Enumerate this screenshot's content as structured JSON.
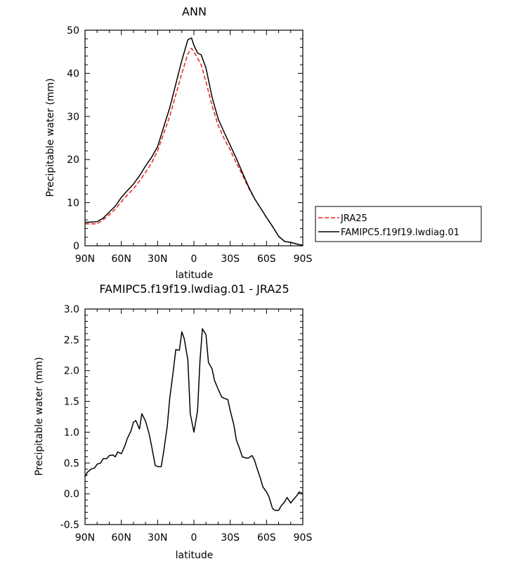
{
  "chart_data": [
    {
      "type": "line",
      "title": "ANN",
      "xlabel": "latitude",
      "ylabel": "Precipitable water (mm)",
      "xlim": [
        90,
        -90
      ],
      "ylim": [
        0,
        50
      ],
      "xticks": [
        90,
        60,
        30,
        0,
        -30,
        -60,
        -90
      ],
      "xtick_labels": [
        "90N",
        "60N",
        "30N",
        "0",
        "30S",
        "60S",
        "90S"
      ],
      "yticks": [
        0,
        10,
        20,
        30,
        40,
        50
      ],
      "ytick_labels": [
        "0",
        "10",
        "20",
        "30",
        "40",
        "50"
      ],
      "legend": {
        "position": "right"
      },
      "series": [
        {
          "name": "JRA25",
          "color": "#e8201a",
          "dash": "dashed",
          "points": [
            [
              90,
              5.1
            ],
            [
              85,
              5.1
            ],
            [
              80,
              5.1
            ],
            [
              75,
              6.0
            ],
            [
              70,
              7.2
            ],
            [
              65,
              8.5
            ],
            [
              60,
              10.2
            ],
            [
              55,
              11.8
            ],
            [
              50,
              13.2
            ],
            [
              45,
              15.0
            ],
            [
              40,
              17.0
            ],
            [
              35,
              19.2
            ],
            [
              30,
              22.0
            ],
            [
              25,
              26.0
            ],
            [
              20,
              30.0
            ],
            [
              15,
              35.0
            ],
            [
              10,
              40.0
            ],
            [
              5,
              44.5
            ],
            [
              2,
              45.8
            ],
            [
              0,
              45.0
            ],
            [
              -3,
              43.5
            ],
            [
              -6,
              42.0
            ],
            [
              -10,
              38.0
            ],
            [
              -15,
              32.5
            ],
            [
              -20,
              28.0
            ],
            [
              -25,
              24.8
            ],
            [
              -30,
              22.2
            ],
            [
              -35,
              19.2
            ],
            [
              -40,
              16.5
            ],
            [
              -45,
              13.5
            ],
            [
              -50,
              11.0
            ],
            [
              -55,
              8.8
            ],
            [
              -60,
              6.5
            ],
            [
              -65,
              4.5
            ],
            [
              -70,
              2.2
            ],
            [
              -75,
              1.0
            ],
            [
              -80,
              0.8
            ],
            [
              -85,
              0.4
            ],
            [
              -90,
              0.1
            ]
          ]
        },
        {
          "name": "FAMIPC5.f19f19.lwdiag.01",
          "color": "#000000",
          "dash": "solid",
          "points": [
            [
              90,
              5.4
            ],
            [
              85,
              5.5
            ],
            [
              80,
              5.6
            ],
            [
              75,
              6.4
            ],
            [
              70,
              7.8
            ],
            [
              65,
              9.2
            ],
            [
              60,
              11.2
            ],
            [
              55,
              12.8
            ],
            [
              50,
              14.3
            ],
            [
              45,
              16.2
            ],
            [
              40,
              18.5
            ],
            [
              35,
              20.5
            ],
            [
              30,
              23.0
            ],
            [
              25,
              27.5
            ],
            [
              20,
              32.0
            ],
            [
              15,
              37.5
            ],
            [
              10,
              43.0
            ],
            [
              5,
              47.8
            ],
            [
              2,
              48.2
            ],
            [
              0,
              46.5
            ],
            [
              -3,
              44.7
            ],
            [
              -6,
              44.3
            ],
            [
              -10,
              41.2
            ],
            [
              -15,
              34.5
            ],
            [
              -20,
              29.5
            ],
            [
              -25,
              26.3
            ],
            [
              -30,
              23.3
            ],
            [
              -35,
              20.3
            ],
            [
              -40,
              17.0
            ],
            [
              -45,
              13.8
            ],
            [
              -50,
              11.0
            ],
            [
              -55,
              8.8
            ],
            [
              -60,
              6.6
            ],
            [
              -65,
              4.5
            ],
            [
              -70,
              2.2
            ],
            [
              -75,
              1.0
            ],
            [
              -80,
              0.8
            ],
            [
              -85,
              0.4
            ],
            [
              -90,
              0.1
            ]
          ]
        }
      ]
    },
    {
      "type": "line",
      "title": "FAMIPC5.f19f19.lwdiag.01 - JRA25",
      "xlabel": "latitude",
      "ylabel": "Precipitable water (mm)",
      "xlim": [
        90,
        -90
      ],
      "ylim": [
        -0.5,
        3.0
      ],
      "xticks": [
        90,
        60,
        30,
        0,
        -30,
        -60,
        -90
      ],
      "xtick_labels": [
        "90N",
        "60N",
        "30N",
        "0",
        "30S",
        "60S",
        "90S"
      ],
      "yticks": [
        -0.5,
        0.0,
        0.5,
        1.0,
        1.5,
        2.0,
        2.5,
        3.0
      ],
      "ytick_labels": [
        "-0.5",
        "0.0",
        "0.5",
        "1.0",
        "1.5",
        "2.0",
        "2.5",
        "3.0"
      ],
      "series": [
        {
          "color": "#000000",
          "dash": "solid",
          "points": [
            [
              90,
              0.28
            ],
            [
              88,
              0.35
            ],
            [
              85,
              0.4
            ],
            [
              82,
              0.42
            ],
            [
              80,
              0.48
            ],
            [
              77,
              0.5
            ],
            [
              75,
              0.57
            ],
            [
              72,
              0.57
            ],
            [
              70,
              0.62
            ],
            [
              67,
              0.63
            ],
            [
              65,
              0.6
            ],
            [
              63,
              0.68
            ],
            [
              60,
              0.65
            ],
            [
              57,
              0.78
            ],
            [
              55,
              0.9
            ],
            [
              52,
              1.02
            ],
            [
              50,
              1.16
            ],
            [
              48,
              1.19
            ],
            [
              45,
              1.05
            ],
            [
              43,
              1.3
            ],
            [
              40,
              1.18
            ],
            [
              37,
              0.97
            ],
            [
              35,
              0.78
            ],
            [
              32,
              0.46
            ],
            [
              30,
              0.44
            ],
            [
              27,
              0.44
            ],
            [
              25,
              0.68
            ],
            [
              22,
              1.1
            ],
            [
              20,
              1.55
            ],
            [
              17,
              2.0
            ],
            [
              15,
              2.34
            ],
            [
              12,
              2.33
            ],
            [
              10,
              2.63
            ],
            [
              8,
              2.52
            ],
            [
              5,
              2.17
            ],
            [
              3,
              1.3
            ],
            [
              0,
              1.0
            ],
            [
              -3,
              1.35
            ],
            [
              -5,
              2.15
            ],
            [
              -7,
              2.68
            ],
            [
              -10,
              2.58
            ],
            [
              -12,
              2.13
            ],
            [
              -15,
              2.03
            ],
            [
              -17,
              1.84
            ],
            [
              -20,
              1.7
            ],
            [
              -23,
              1.57
            ],
            [
              -25,
              1.55
            ],
            [
              -28,
              1.53
            ],
            [
              -30,
              1.35
            ],
            [
              -33,
              1.12
            ],
            [
              -35,
              0.88
            ],
            [
              -38,
              0.72
            ],
            [
              -40,
              0.6
            ],
            [
              -43,
              0.58
            ],
            [
              -45,
              0.58
            ],
            [
              -48,
              0.62
            ],
            [
              -50,
              0.55
            ],
            [
              -52,
              0.42
            ],
            [
              -55,
              0.25
            ],
            [
              -57,
              0.11
            ],
            [
              -60,
              0.03
            ],
            [
              -62,
              -0.05
            ],
            [
              -65,
              -0.24
            ],
            [
              -67,
              -0.27
            ],
            [
              -70,
              -0.27
            ],
            [
              -72,
              -0.2
            ],
            [
              -75,
              -0.13
            ],
            [
              -77,
              -0.06
            ],
            [
              -80,
              -0.15
            ],
            [
              -82,
              -0.1
            ],
            [
              -85,
              -0.03
            ],
            [
              -87,
              0.03
            ],
            [
              -90,
              0.0
            ]
          ]
        }
      ]
    }
  ]
}
